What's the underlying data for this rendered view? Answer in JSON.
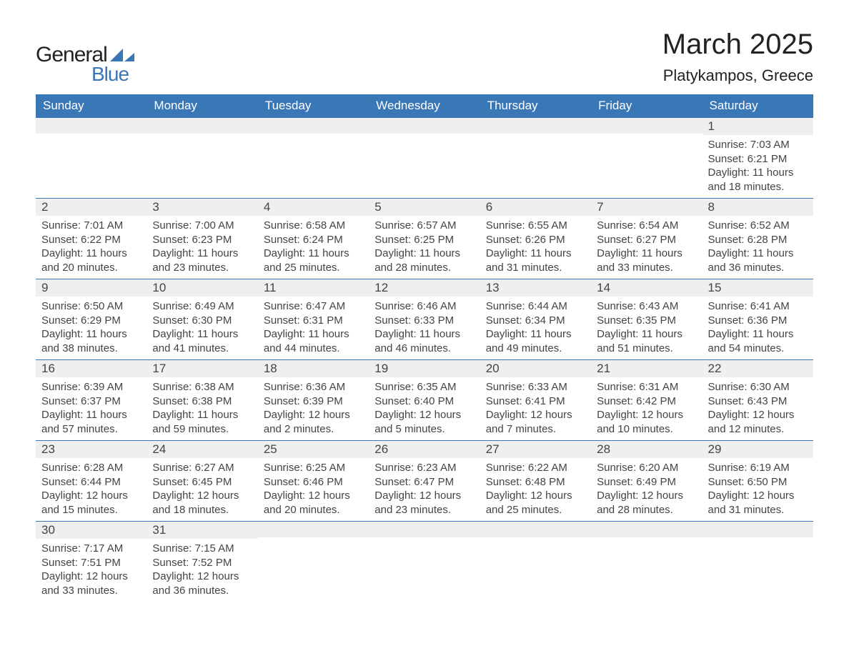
{
  "brand": {
    "word1": "General",
    "word2": "Blue"
  },
  "title": "March 2025",
  "location": "Platykampos, Greece",
  "colors": {
    "header_bg": "#3a77b6",
    "header_text": "#ffffff",
    "daynum_bg": "#efefef",
    "border": "#3a77b6",
    "text": "#444444",
    "background": "#ffffff"
  },
  "typography": {
    "title_fontsize": 40,
    "location_fontsize": 22,
    "header_fontsize": 17,
    "daynum_fontsize": 17,
    "body_fontsize": 15
  },
  "weekdays": [
    "Sunday",
    "Monday",
    "Tuesday",
    "Wednesday",
    "Thursday",
    "Friday",
    "Saturday"
  ],
  "weeks": [
    [
      null,
      null,
      null,
      null,
      null,
      null,
      {
        "n": "1",
        "sunrise": "Sunrise: 7:03 AM",
        "sunset": "Sunset: 6:21 PM",
        "daylight": "Daylight: 11 hours and 18 minutes."
      }
    ],
    [
      {
        "n": "2",
        "sunrise": "Sunrise: 7:01 AM",
        "sunset": "Sunset: 6:22 PM",
        "daylight": "Daylight: 11 hours and 20 minutes."
      },
      {
        "n": "3",
        "sunrise": "Sunrise: 7:00 AM",
        "sunset": "Sunset: 6:23 PM",
        "daylight": "Daylight: 11 hours and 23 minutes."
      },
      {
        "n": "4",
        "sunrise": "Sunrise: 6:58 AM",
        "sunset": "Sunset: 6:24 PM",
        "daylight": "Daylight: 11 hours and 25 minutes."
      },
      {
        "n": "5",
        "sunrise": "Sunrise: 6:57 AM",
        "sunset": "Sunset: 6:25 PM",
        "daylight": "Daylight: 11 hours and 28 minutes."
      },
      {
        "n": "6",
        "sunrise": "Sunrise: 6:55 AM",
        "sunset": "Sunset: 6:26 PM",
        "daylight": "Daylight: 11 hours and 31 minutes."
      },
      {
        "n": "7",
        "sunrise": "Sunrise: 6:54 AM",
        "sunset": "Sunset: 6:27 PM",
        "daylight": "Daylight: 11 hours and 33 minutes."
      },
      {
        "n": "8",
        "sunrise": "Sunrise: 6:52 AM",
        "sunset": "Sunset: 6:28 PM",
        "daylight": "Daylight: 11 hours and 36 minutes."
      }
    ],
    [
      {
        "n": "9",
        "sunrise": "Sunrise: 6:50 AM",
        "sunset": "Sunset: 6:29 PM",
        "daylight": "Daylight: 11 hours and 38 minutes."
      },
      {
        "n": "10",
        "sunrise": "Sunrise: 6:49 AM",
        "sunset": "Sunset: 6:30 PM",
        "daylight": "Daylight: 11 hours and 41 minutes."
      },
      {
        "n": "11",
        "sunrise": "Sunrise: 6:47 AM",
        "sunset": "Sunset: 6:31 PM",
        "daylight": "Daylight: 11 hours and 44 minutes."
      },
      {
        "n": "12",
        "sunrise": "Sunrise: 6:46 AM",
        "sunset": "Sunset: 6:33 PM",
        "daylight": "Daylight: 11 hours and 46 minutes."
      },
      {
        "n": "13",
        "sunrise": "Sunrise: 6:44 AM",
        "sunset": "Sunset: 6:34 PM",
        "daylight": "Daylight: 11 hours and 49 minutes."
      },
      {
        "n": "14",
        "sunrise": "Sunrise: 6:43 AM",
        "sunset": "Sunset: 6:35 PM",
        "daylight": "Daylight: 11 hours and 51 minutes."
      },
      {
        "n": "15",
        "sunrise": "Sunrise: 6:41 AM",
        "sunset": "Sunset: 6:36 PM",
        "daylight": "Daylight: 11 hours and 54 minutes."
      }
    ],
    [
      {
        "n": "16",
        "sunrise": "Sunrise: 6:39 AM",
        "sunset": "Sunset: 6:37 PM",
        "daylight": "Daylight: 11 hours and 57 minutes."
      },
      {
        "n": "17",
        "sunrise": "Sunrise: 6:38 AM",
        "sunset": "Sunset: 6:38 PM",
        "daylight": "Daylight: 11 hours and 59 minutes."
      },
      {
        "n": "18",
        "sunrise": "Sunrise: 6:36 AM",
        "sunset": "Sunset: 6:39 PM",
        "daylight": "Daylight: 12 hours and 2 minutes."
      },
      {
        "n": "19",
        "sunrise": "Sunrise: 6:35 AM",
        "sunset": "Sunset: 6:40 PM",
        "daylight": "Daylight: 12 hours and 5 minutes."
      },
      {
        "n": "20",
        "sunrise": "Sunrise: 6:33 AM",
        "sunset": "Sunset: 6:41 PM",
        "daylight": "Daylight: 12 hours and 7 minutes."
      },
      {
        "n": "21",
        "sunrise": "Sunrise: 6:31 AM",
        "sunset": "Sunset: 6:42 PM",
        "daylight": "Daylight: 12 hours and 10 minutes."
      },
      {
        "n": "22",
        "sunrise": "Sunrise: 6:30 AM",
        "sunset": "Sunset: 6:43 PM",
        "daylight": "Daylight: 12 hours and 12 minutes."
      }
    ],
    [
      {
        "n": "23",
        "sunrise": "Sunrise: 6:28 AM",
        "sunset": "Sunset: 6:44 PM",
        "daylight": "Daylight: 12 hours and 15 minutes."
      },
      {
        "n": "24",
        "sunrise": "Sunrise: 6:27 AM",
        "sunset": "Sunset: 6:45 PM",
        "daylight": "Daylight: 12 hours and 18 minutes."
      },
      {
        "n": "25",
        "sunrise": "Sunrise: 6:25 AM",
        "sunset": "Sunset: 6:46 PM",
        "daylight": "Daylight: 12 hours and 20 minutes."
      },
      {
        "n": "26",
        "sunrise": "Sunrise: 6:23 AM",
        "sunset": "Sunset: 6:47 PM",
        "daylight": "Daylight: 12 hours and 23 minutes."
      },
      {
        "n": "27",
        "sunrise": "Sunrise: 6:22 AM",
        "sunset": "Sunset: 6:48 PM",
        "daylight": "Daylight: 12 hours and 25 minutes."
      },
      {
        "n": "28",
        "sunrise": "Sunrise: 6:20 AM",
        "sunset": "Sunset: 6:49 PM",
        "daylight": "Daylight: 12 hours and 28 minutes."
      },
      {
        "n": "29",
        "sunrise": "Sunrise: 6:19 AM",
        "sunset": "Sunset: 6:50 PM",
        "daylight": "Daylight: 12 hours and 31 minutes."
      }
    ],
    [
      {
        "n": "30",
        "sunrise": "Sunrise: 7:17 AM",
        "sunset": "Sunset: 7:51 PM",
        "daylight": "Daylight: 12 hours and 33 minutes."
      },
      {
        "n": "31",
        "sunrise": "Sunrise: 7:15 AM",
        "sunset": "Sunset: 7:52 PM",
        "daylight": "Daylight: 12 hours and 36 minutes."
      },
      null,
      null,
      null,
      null,
      null
    ]
  ]
}
